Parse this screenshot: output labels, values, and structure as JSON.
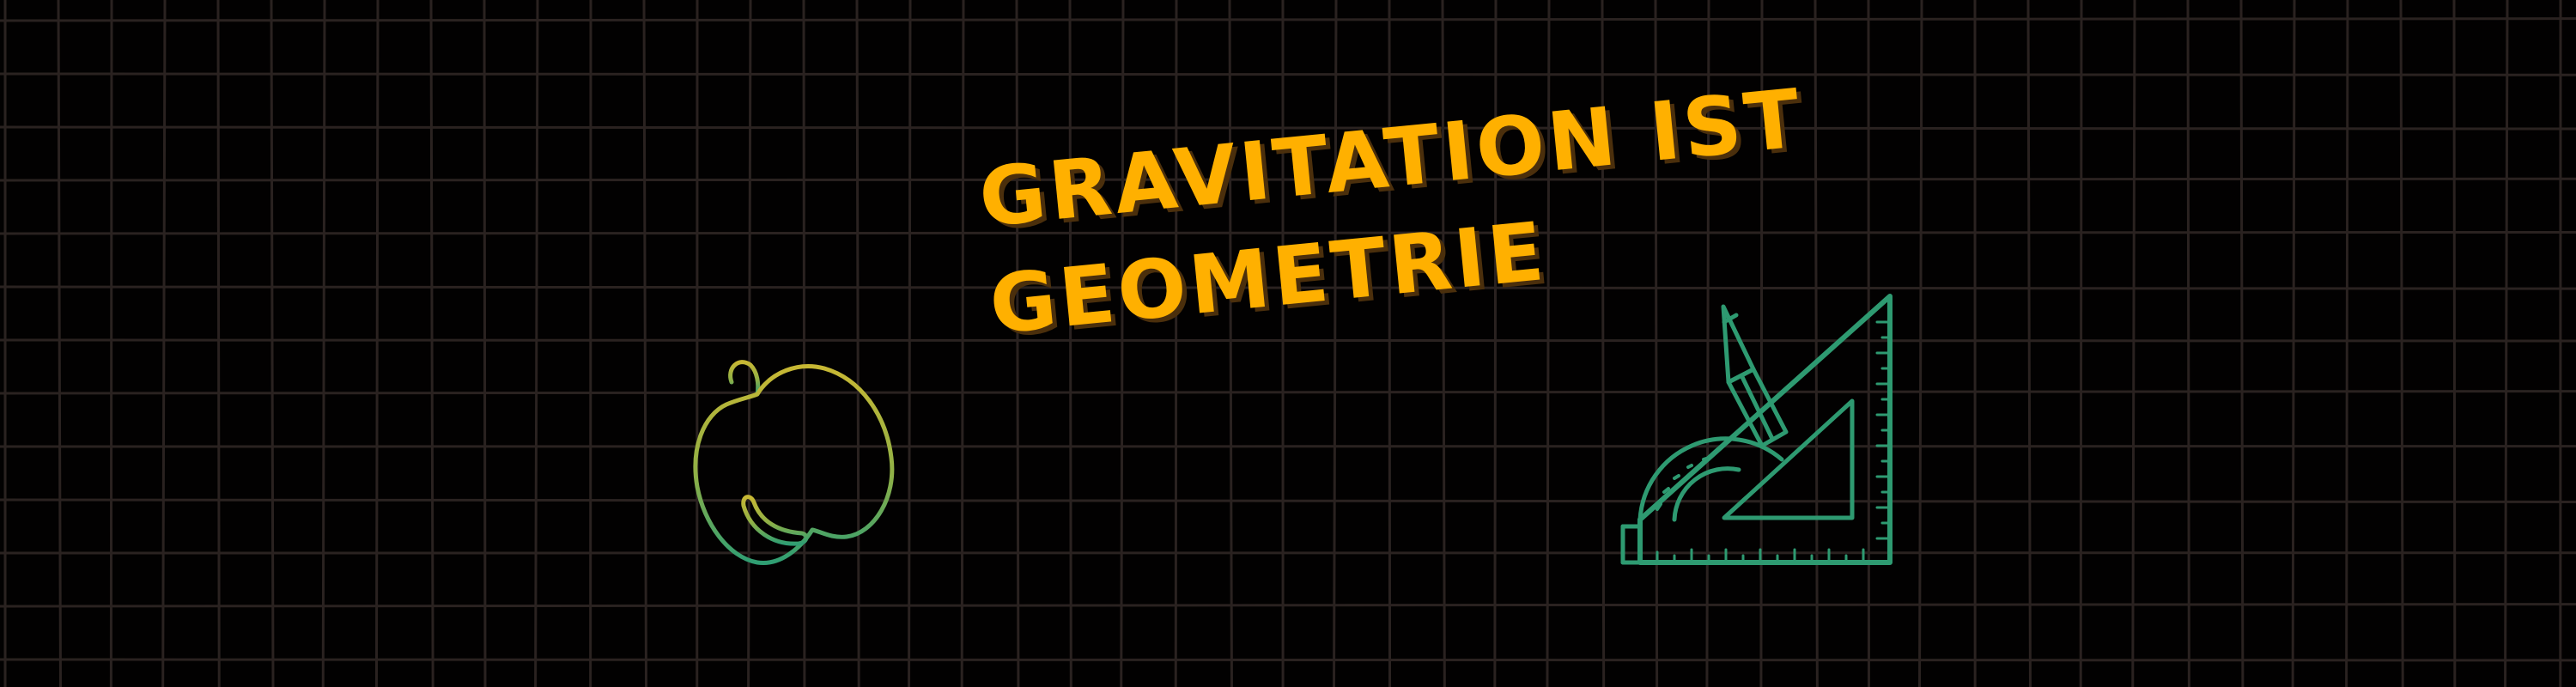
{
  "banner": {
    "headline_line_1": "GRAVITATION IST",
    "headline_line_2": "GEOMETRIE"
  },
  "colors": {
    "background": "#020101",
    "grid_line": "#2a2220",
    "headline": "#ffb000",
    "headline_shadow": "#4b2f0c",
    "apple_top": "#c8b834",
    "apple_bottom": "#2f9e73",
    "geometry_tools": "#2e9a71"
  },
  "icons": {
    "left": "falling-apple-icon",
    "right": "set-square-protractor-pencil-icon"
  }
}
